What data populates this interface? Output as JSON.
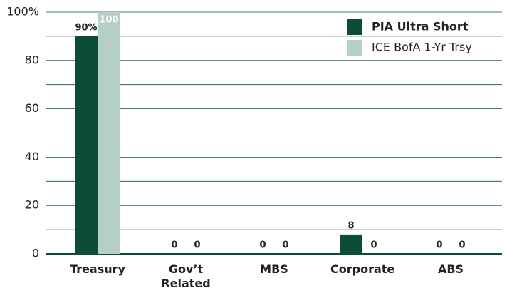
{
  "chart_data": {
    "type": "bar",
    "categories": [
      "Treasury",
      "Gov’t Related",
      "MBS",
      "Corporate",
      "ABS"
    ],
    "series": [
      {
        "name": "PIA Ultra Short",
        "color": "#0d4d35",
        "values": [
          90,
          0,
          0,
          8,
          0
        ],
        "value_labels": [
          "90%",
          "0",
          "0",
          "8",
          "0"
        ]
      },
      {
        "name": "ICE BofA 1-Yr Trsy",
        "color": "#b5cfc4",
        "values": [
          100,
          0,
          0,
          0,
          0
        ],
        "value_labels": [
          "100",
          "0",
          "0",
          "0",
          "0"
        ]
      }
    ],
    "ylim": [
      0,
      100
    ],
    "yticks": [
      0,
      20,
      40,
      60,
      80,
      {
        "value": 100,
        "label": "100%"
      }
    ],
    "minor_gridlines": [
      10,
      30,
      50,
      70,
      90
    ],
    "grid": true,
    "legend": "top-right"
  }
}
